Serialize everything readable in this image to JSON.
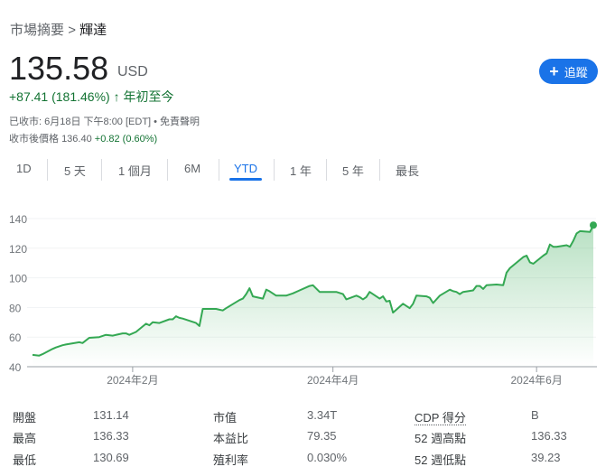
{
  "breadcrumb": {
    "parent": "市場摘要",
    "separator": ">",
    "current": "輝達"
  },
  "quote": {
    "price": "135.58",
    "currency": "USD",
    "change": "+87.41 (181.46%)",
    "period": "年初至今",
    "direction": "up"
  },
  "follow_button": {
    "label": "追蹤",
    "icon": "plus-icon"
  },
  "meta": {
    "closed": "已收市: 6月18日 下午8:00 [EDT] • 免責聲明",
    "after_hours_label": "收市後價格",
    "after_hours_price": "136.40",
    "after_hours_change": "+0.82 (0.60%)"
  },
  "tabs": [
    {
      "label": "1D"
    },
    {
      "label": "5 天"
    },
    {
      "label": "1 個月"
    },
    {
      "label": "6M"
    },
    {
      "label": "YTD",
      "active": true
    },
    {
      "label": "1 年"
    },
    {
      "label": "5 年"
    },
    {
      "label": "最長"
    }
  ],
  "colors": {
    "accent": "#1a73e8",
    "positive": "#137333",
    "line": "#34a853"
  },
  "chart_data": {
    "type": "area",
    "ylim": [
      40,
      140
    ],
    "yticks": [
      "40",
      "60",
      "80",
      "100",
      "120",
      "140"
    ],
    "xticks": [
      {
        "date": "2024-02-01",
        "label": "2024年2月"
      },
      {
        "date": "2024-04-01",
        "label": "2024年4月"
      },
      {
        "date": "2024-06-01",
        "label": "2024年6月"
      }
    ],
    "grid": true,
    "series": [
      {
        "points": [
          [
            "2024-01-02",
            48
          ],
          [
            "2024-01-04",
            47.5
          ],
          [
            "2024-01-05",
            48.5
          ],
          [
            "2024-01-08",
            52
          ],
          [
            "2024-01-09",
            53
          ],
          [
            "2024-01-11",
            54.5
          ],
          [
            "2024-01-12",
            55
          ],
          [
            "2024-01-16",
            56.5
          ],
          [
            "2024-01-17",
            56
          ],
          [
            "2024-01-19",
            59.5
          ],
          [
            "2024-01-22",
            60
          ],
          [
            "2024-01-24",
            61.5
          ],
          [
            "2024-01-26",
            61
          ],
          [
            "2024-01-29",
            62.5
          ],
          [
            "2024-01-30",
            62.5
          ],
          [
            "2024-01-31",
            61.5
          ],
          [
            "2024-02-02",
            63.5
          ],
          [
            "2024-02-05",
            69
          ],
          [
            "2024-02-06",
            68
          ],
          [
            "2024-02-07",
            70
          ],
          [
            "2024-02-09",
            69.5
          ],
          [
            "2024-02-12",
            72
          ],
          [
            "2024-02-13",
            72
          ],
          [
            "2024-02-14",
            74
          ],
          [
            "2024-02-15",
            73
          ],
          [
            "2024-02-16",
            72.5
          ],
          [
            "2024-02-20",
            69.5
          ],
          [
            "2024-02-21",
            67.5
          ],
          [
            "2024-02-22",
            79
          ],
          [
            "2024-02-26",
            79
          ],
          [
            "2024-02-27",
            78.5
          ],
          [
            "2024-02-28",
            78
          ],
          [
            "2024-02-29",
            79.5
          ],
          [
            "2024-03-04",
            85
          ],
          [
            "2024-03-05",
            86
          ],
          [
            "2024-03-06",
            89
          ],
          [
            "2024-03-07",
            93
          ],
          [
            "2024-03-08",
            87.5
          ],
          [
            "2024-03-11",
            86
          ],
          [
            "2024-03-12",
            92
          ],
          [
            "2024-03-13",
            91
          ],
          [
            "2024-03-15",
            88
          ],
          [
            "2024-03-18",
            88
          ],
          [
            "2024-03-20",
            89.5
          ],
          [
            "2024-03-22",
            91.5
          ],
          [
            "2024-03-25",
            94.5
          ],
          [
            "2024-03-26",
            95
          ],
          [
            "2024-03-28",
            90.5
          ],
          [
            "2024-04-02",
            90.5
          ],
          [
            "2024-04-04",
            89
          ],
          [
            "2024-04-05",
            85.5
          ],
          [
            "2024-04-08",
            88
          ],
          [
            "2024-04-09",
            87
          ],
          [
            "2024-04-10",
            85.5
          ],
          [
            "2024-04-11",
            87
          ],
          [
            "2024-04-12",
            90.5
          ],
          [
            "2024-04-15",
            86
          ],
          [
            "2024-04-16",
            87.5
          ],
          [
            "2024-04-17",
            84
          ],
          [
            "2024-04-18",
            84.5
          ],
          [
            "2024-04-19",
            76.5
          ],
          [
            "2024-04-22",
            82.5
          ],
          [
            "2024-04-24",
            79.5
          ],
          [
            "2024-04-25",
            82.5
          ],
          [
            "2024-04-26",
            88
          ],
          [
            "2024-04-29",
            87.5
          ],
          [
            "2024-04-30",
            86.5
          ],
          [
            "2024-05-01",
            83
          ],
          [
            "2024-05-03",
            88
          ],
          [
            "2024-05-06",
            92
          ],
          [
            "2024-05-07",
            91
          ],
          [
            "2024-05-08",
            90.5
          ],
          [
            "2024-05-09",
            89
          ],
          [
            "2024-05-10",
            90.5
          ],
          [
            "2024-05-13",
            91.5
          ],
          [
            "2024-05-14",
            94.5
          ],
          [
            "2024-05-15",
            94.5
          ],
          [
            "2024-05-16",
            92.5
          ],
          [
            "2024-05-17",
            95
          ],
          [
            "2024-05-20",
            95.5
          ],
          [
            "2024-05-22",
            95
          ],
          [
            "2024-05-23",
            103.5
          ],
          [
            "2024-05-24",
            106.5
          ],
          [
            "2024-05-28",
            114
          ],
          [
            "2024-05-29",
            115
          ],
          [
            "2024-05-30",
            110.5
          ],
          [
            "2024-05-31",
            109.5
          ],
          [
            "2024-06-03",
            115
          ],
          [
            "2024-06-04",
            116.5
          ],
          [
            "2024-06-05",
            122.5
          ],
          [
            "2024-06-06",
            121
          ],
          [
            "2024-06-07",
            121
          ],
          [
            "2024-06-10",
            122
          ],
          [
            "2024-06-11",
            121
          ],
          [
            "2024-06-12",
            125
          ],
          [
            "2024-06-13",
            130
          ],
          [
            "2024-06-14",
            131.5
          ],
          [
            "2024-06-17",
            131
          ],
          [
            "2024-06-18",
            135.58
          ]
        ]
      }
    ]
  },
  "stats": [
    [
      {
        "label": "開盤",
        "value": "131.14"
      },
      {
        "label": "市值",
        "value": "3.34T"
      },
      {
        "label": "CDP 得分",
        "value": "B"
      }
    ],
    [
      {
        "label": "最高",
        "value": "136.33"
      },
      {
        "label": "本益比",
        "value": "79.35"
      },
      {
        "label": "52 週高點",
        "value": "136.33"
      }
    ],
    [
      {
        "label": "最低",
        "value": "130.69"
      },
      {
        "label": "殖利率",
        "value": "0.030%"
      },
      {
        "label": "52 週低點",
        "value": "39.23"
      }
    ]
  ]
}
